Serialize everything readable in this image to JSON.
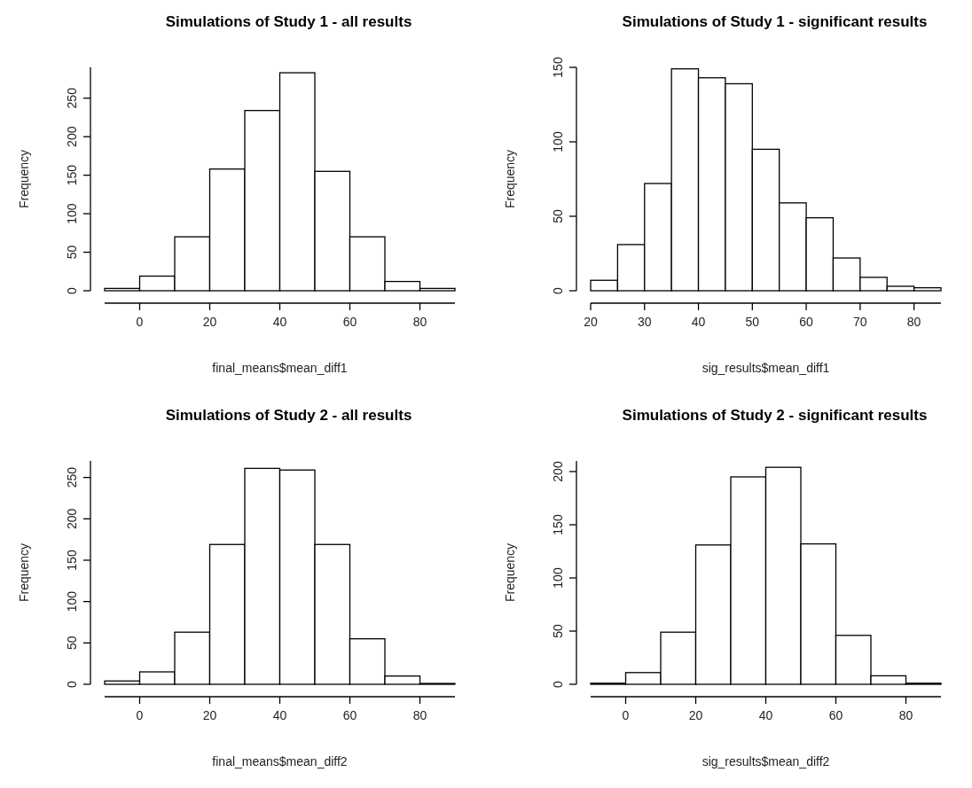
{
  "chart_data": [
    {
      "type": "histogram",
      "title": "Simulations of Study 1 - all results",
      "xlabel": "final_means$mean_diff1",
      "ylabel": "Frequency",
      "bins": [
        -10,
        0,
        10,
        20,
        30,
        40,
        50,
        60,
        70,
        80,
        90
      ],
      "values": [
        3,
        19,
        70,
        158,
        234,
        283,
        155,
        70,
        12,
        3
      ],
      "color": "#ffffff",
      "xlim": [
        -10,
        90
      ],
      "ylim": [
        0,
        290
      ],
      "xticks": [
        0,
        20,
        40,
        60,
        80
      ],
      "yticks": [
        0,
        50,
        100,
        150,
        200,
        250
      ],
      "grid": false
    },
    {
      "type": "histogram",
      "title": "Simulations of Study 1 - significant results",
      "xlabel": "sig_results$mean_diff1",
      "ylabel": "Frequency",
      "bins": [
        20,
        25,
        30,
        35,
        40,
        45,
        50,
        55,
        60,
        65,
        70,
        75,
        80,
        85
      ],
      "values": [
        7,
        31,
        72,
        149,
        143,
        139,
        95,
        59,
        49,
        22,
        9,
        3,
        2
      ],
      "color": "#ffffff",
      "xlim": [
        20,
        85
      ],
      "ylim": [
        0,
        150
      ],
      "xticks": [
        20,
        30,
        40,
        50,
        60,
        70,
        80
      ],
      "yticks": [
        0,
        50,
        100,
        150
      ],
      "grid": false
    },
    {
      "type": "histogram",
      "title": "Simulations of Study 2 - all results",
      "xlabel": "final_means$mean_diff2",
      "ylabel": "Frequency",
      "bins": [
        -10,
        0,
        10,
        20,
        30,
        40,
        50,
        60,
        70,
        80,
        90
      ],
      "values": [
        4,
        15,
        63,
        169,
        261,
        259,
        169,
        55,
        10,
        1
      ],
      "color": "#ffffff",
      "xlim": [
        -10,
        90
      ],
      "ylim": [
        0,
        270
      ],
      "xticks": [
        0,
        20,
        40,
        60,
        80
      ],
      "yticks": [
        0,
        50,
        100,
        150,
        200,
        250
      ],
      "grid": false
    },
    {
      "type": "histogram",
      "title": "Simulations of Study 2 - significant results",
      "xlabel": "sig_results$mean_diff2",
      "ylabel": "Frequency",
      "bins": [
        -10,
        0,
        10,
        20,
        30,
        40,
        50,
        60,
        70,
        80,
        90
      ],
      "values": [
        1,
        11,
        49,
        131,
        195,
        204,
        132,
        46,
        8,
        1
      ],
      "color": "#ffffff",
      "xlim": [
        -10,
        90
      ],
      "ylim": [
        0,
        210
      ],
      "xticks": [
        0,
        20,
        40,
        60,
        80
      ],
      "yticks": [
        0,
        50,
        100,
        150,
        200
      ],
      "grid": false
    }
  ]
}
